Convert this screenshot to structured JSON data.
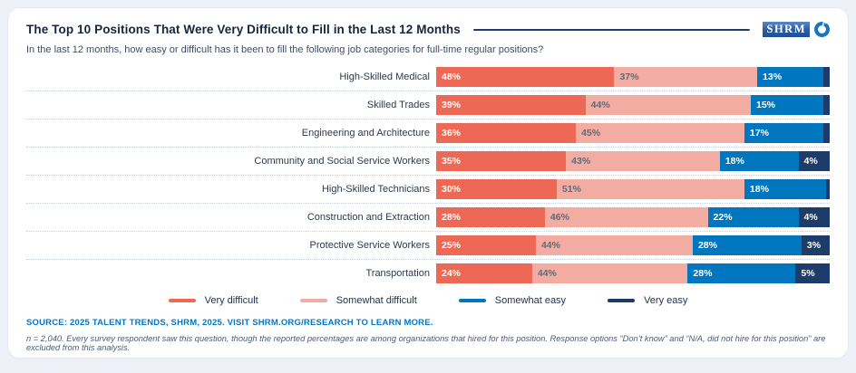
{
  "header": {
    "title": "The Top 10 Positions That Were Very Difficult to Fill in the Last 12 Months",
    "subtitle": "In the last 12 months, how easy or difficult has it been to fill the following job categories for full-time regular positions?",
    "logo_text": "SHRM"
  },
  "colors": {
    "very_difficult": "#ee6955",
    "somewhat_difficult": "#f3aca1",
    "somewhat_easy": "#0076be",
    "very_easy": "#1e3c69",
    "accent_line": "#1e3c69",
    "source_blue": "#0077c8",
    "logo_blue": "#1c75bc"
  },
  "chart_data": {
    "type": "bar",
    "orientation": "horizontal",
    "stacked": true,
    "value_suffix": "%",
    "legend_position": "bottom",
    "grid": "dotted row separators",
    "categories": [
      "High-Skilled Medical",
      "Skilled Trades",
      "Engineering and Architecture",
      "Community and Social Service Workers",
      "High-Skilled Technicians",
      "Construction and Extraction",
      "Protective Service Workers",
      "Transportation"
    ],
    "series": [
      {
        "name": "Very difficult",
        "color_key": "very_difficult",
        "values": [
          48,
          39,
          36,
          35,
          30,
          28,
          25,
          24
        ],
        "labeled": [
          true,
          true,
          true,
          true,
          true,
          true,
          true,
          true
        ]
      },
      {
        "name": "Somewhat difficult",
        "color_key": "somewhat_difficult",
        "values": [
          37,
          44,
          45,
          43,
          51,
          46,
          44,
          44
        ],
        "labeled": [
          true,
          true,
          true,
          true,
          true,
          true,
          true,
          true
        ]
      },
      {
        "name": "Somewhat easy",
        "color_key": "somewhat_easy",
        "values": [
          13,
          15,
          17,
          18,
          18,
          22,
          28,
          28
        ],
        "labeled": [
          true,
          true,
          true,
          true,
          true,
          true,
          true,
          true
        ]
      },
      {
        "name": "Very easy",
        "color_key": "very_easy",
        "values": [
          2,
          2,
          2,
          4,
          1,
          4,
          3,
          5
        ],
        "labeled": [
          false,
          false,
          false,
          true,
          false,
          true,
          true,
          true
        ]
      }
    ],
    "legend": [
      {
        "label": "Very difficult",
        "color_key": "very_difficult"
      },
      {
        "label": "Somewhat difficult",
        "color_key": "somewhat_difficult"
      },
      {
        "label": "Somewhat easy",
        "color_key": "somewhat_easy"
      },
      {
        "label": "Very easy",
        "color_key": "very_easy"
      }
    ]
  },
  "footer": {
    "source": "SOURCE: 2025 TALENT TRENDS, SHRM, 2025. VISIT SHRM.ORG/RESEARCH TO LEARN MORE.",
    "footnote": "n = 2,040. Every survey respondent saw this question, though the reported percentages are among organizations that hired for this position. Response options “Don’t know” and “N/A, did not hire for this position” are excluded from this analysis."
  }
}
